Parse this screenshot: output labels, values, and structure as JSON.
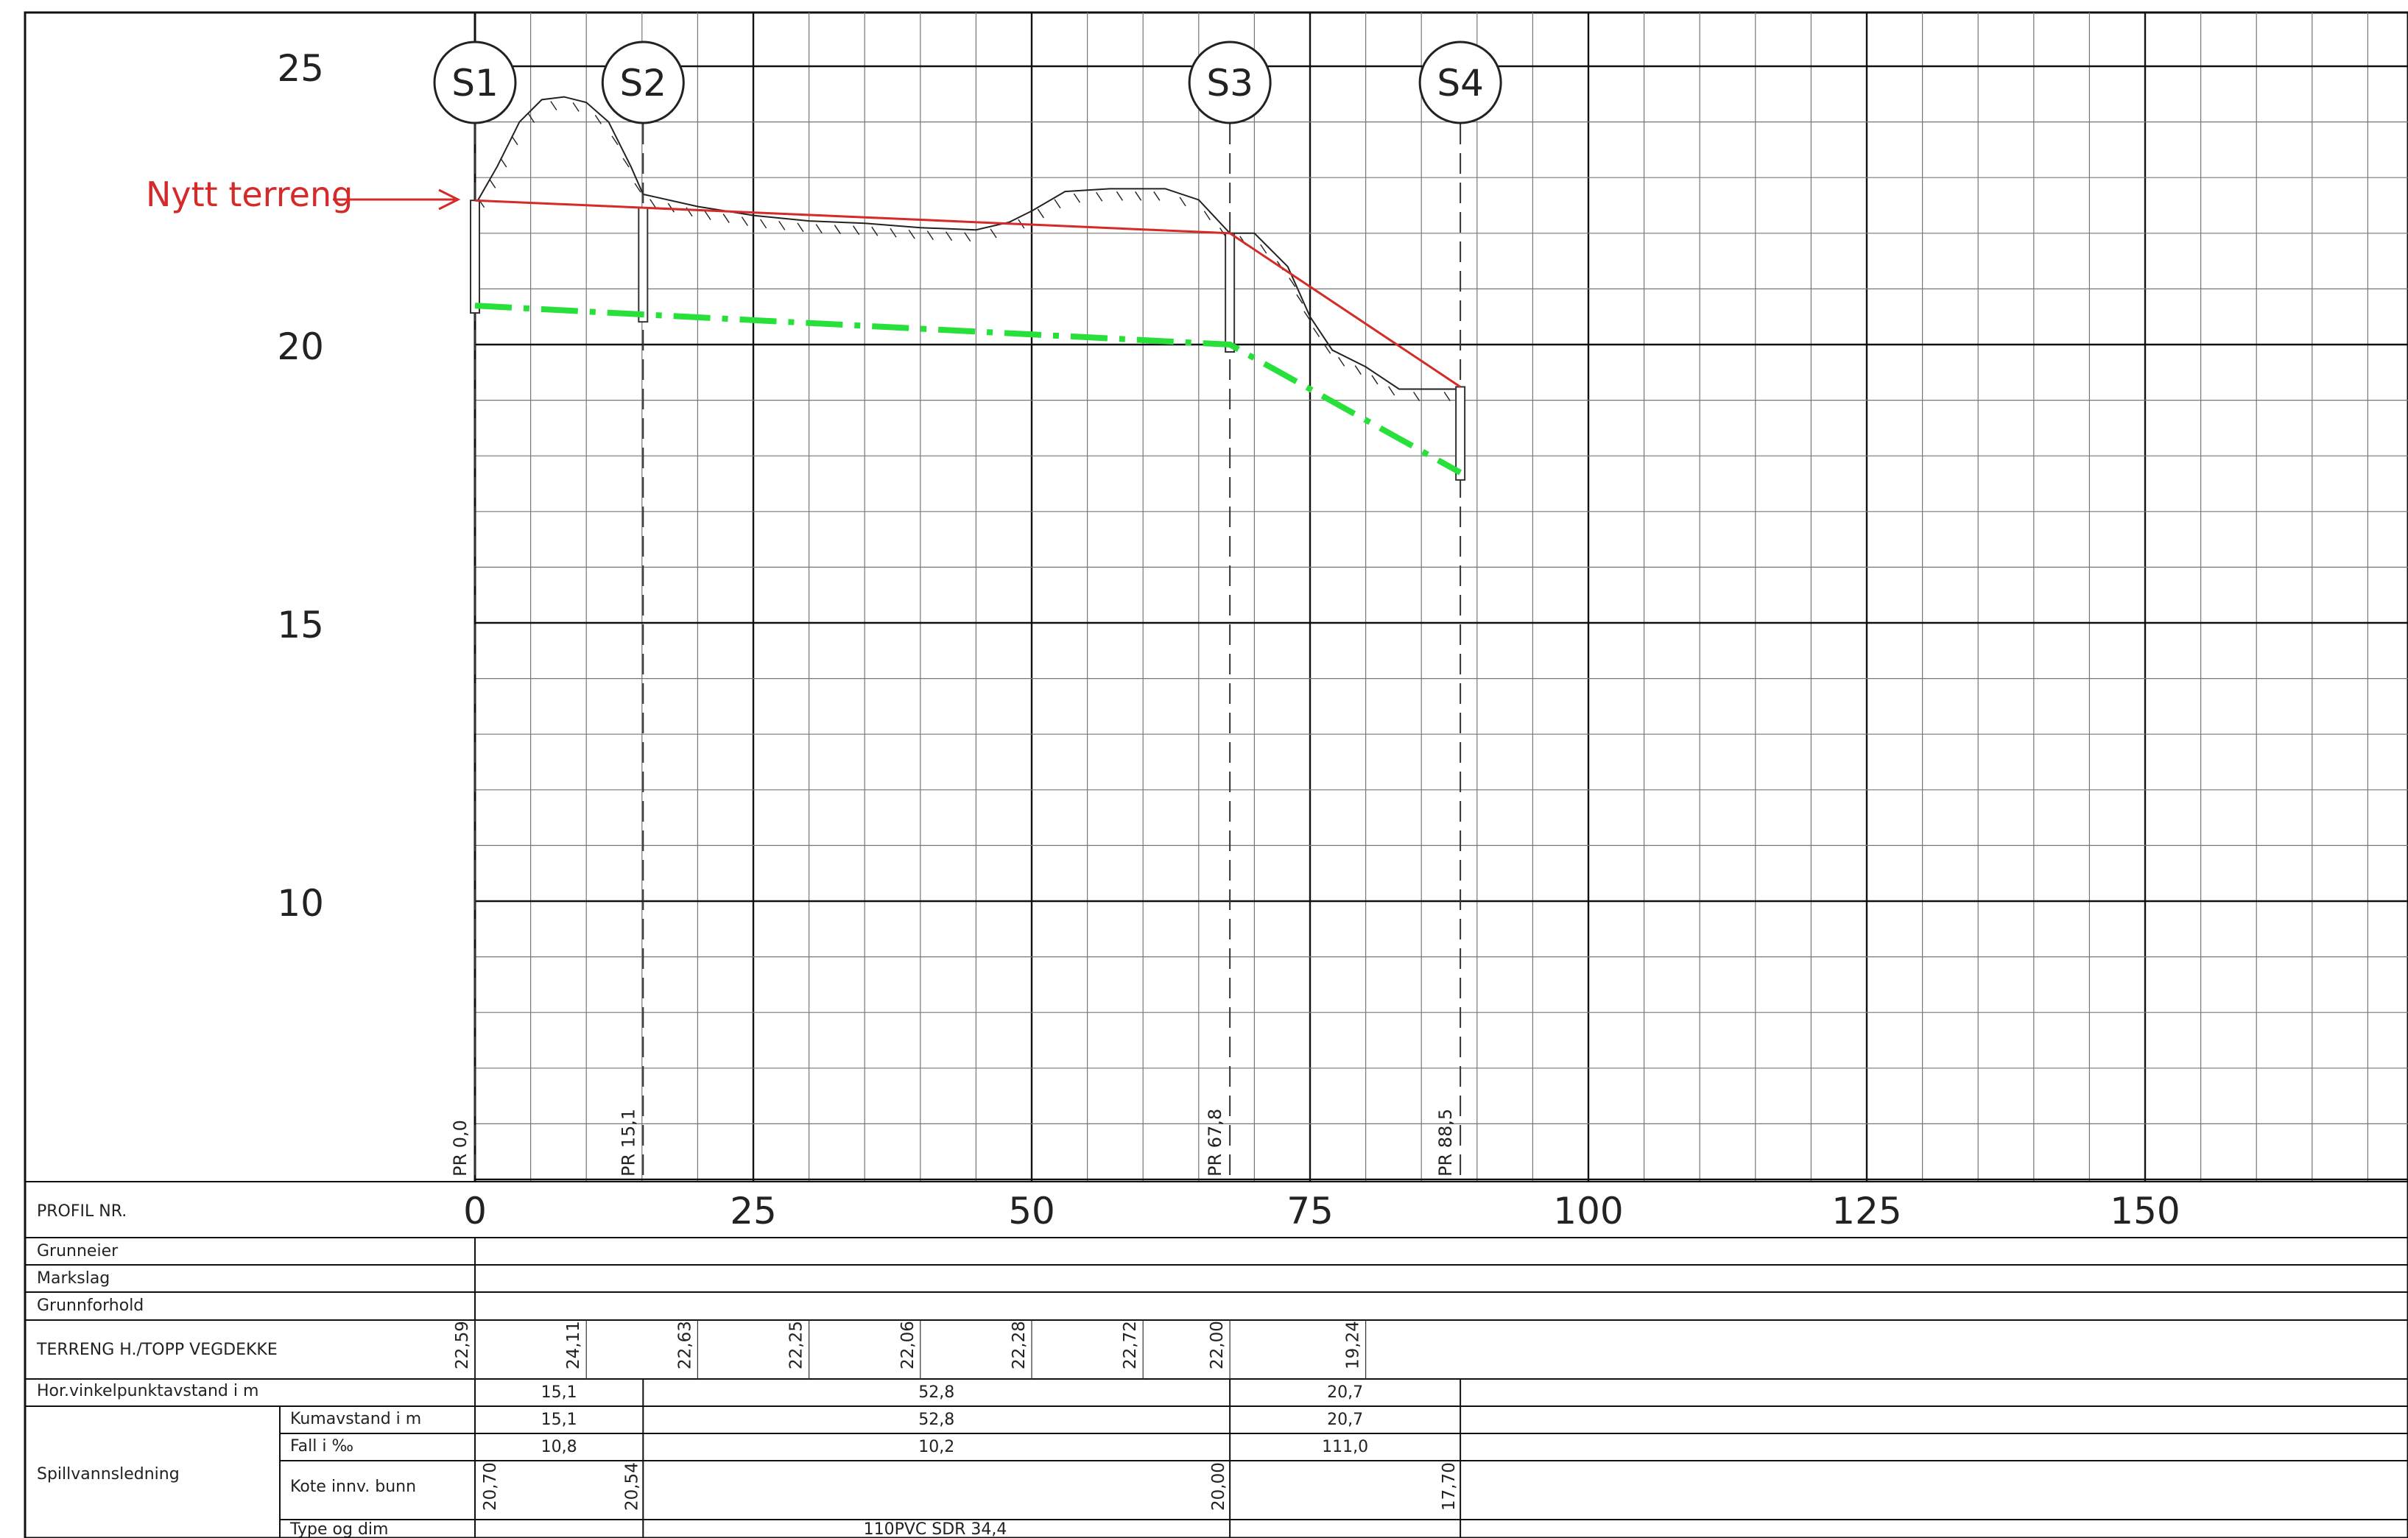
{
  "colors": {
    "grid": "#777777",
    "gridMajor": "#111111",
    "terrain": "#d42a2a",
    "pipe": "#28e03a",
    "text": "#222222",
    "annotation": "#d42a2a"
  },
  "annotation": {
    "label": "Nytt terreng"
  },
  "y_ticks": [
    "25",
    "20",
    "15",
    "10"
  ],
  "x_ticks": [
    "0",
    "25",
    "50",
    "75",
    "100",
    "125",
    "150"
  ],
  "manholes": [
    {
      "label": "S1",
      "station": 0.0,
      "pr": "PR 0,0"
    },
    {
      "label": "S2",
      "station": 15.1,
      "pr": "PR 15,1"
    },
    {
      "label": "S3",
      "station": 67.8,
      "pr": "PR 67,8"
    },
    {
      "label": "S4",
      "station": 88.5,
      "pr": "PR 88,5"
    }
  ],
  "chart_data": {
    "type": "line",
    "x_range": [
      0,
      175
    ],
    "y_range": [
      4,
      26
    ],
    "series": [
      {
        "name": "Nytt terreng",
        "points": [
          [
            0,
            22.59
          ],
          [
            67.8,
            22.0
          ],
          [
            88.5,
            19.24
          ]
        ]
      },
      {
        "points": [
          [
            0,
            20.7
          ],
          [
            15.1,
            20.54
          ],
          [
            67.8,
            20.0
          ],
          [
            88.5,
            17.7
          ]
        ]
      }
    ]
  },
  "table": {
    "profil_nr": "PROFIL NR.",
    "grunneier": "Grunneier",
    "markslag": "Markslag",
    "grunnforhold": "Grunnforhold",
    "terreng": {
      "label": "TERRENG H./TOPP VEGDEKKE",
      "values": [
        {
          "x": 0,
          "v": "22,59"
        },
        {
          "x": 10,
          "v": "24,11"
        },
        {
          "x": 20,
          "v": "22,63"
        },
        {
          "x": 30,
          "v": "22,25"
        },
        {
          "x": 40,
          "v": "22,06"
        },
        {
          "x": 50,
          "v": "22,28"
        },
        {
          "x": 60,
          "v": "22,72"
        },
        {
          "x": 67.8,
          "v": "22,00"
        },
        {
          "x": 80,
          "v": "19,24"
        }
      ]
    },
    "hor": {
      "label": "Hor.vinkelpunktavstand i m",
      "values": [
        "15,1",
        "52,8",
        "20,7"
      ]
    },
    "spillvann": "Spillvannsledning",
    "kumavstand": {
      "label": "Kumavstand i m",
      "values": [
        "15,1",
        "52,8",
        "20,7"
      ]
    },
    "fall": {
      "label": "Fall i ‰",
      "values": [
        "10,8",
        "10,2",
        "111,0"
      ]
    },
    "kote": {
      "label": "Kote innv. bunn",
      "values": [
        {
          "x": 0,
          "v": "20,70"
        },
        {
          "x": 15.1,
          "v": "20,54"
        },
        {
          "x": 67.8,
          "v": "20,00"
        },
        {
          "x": 88.5,
          "v": "17,70"
        }
      ]
    },
    "type": {
      "label": "Type og dim",
      "value": "110PVC SDR 34,4"
    }
  }
}
